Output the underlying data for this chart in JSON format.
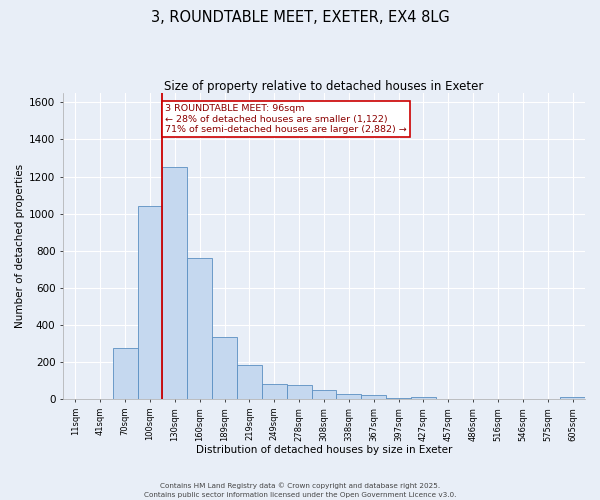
{
  "title1": "3, ROUNDTABLE MEET, EXETER, EX4 8LG",
  "title2": "Size of property relative to detached houses in Exeter",
  "xlabel": "Distribution of detached houses by size in Exeter",
  "ylabel": "Number of detached properties",
  "categories": [
    "11sqm",
    "41sqm",
    "70sqm",
    "100sqm",
    "130sqm",
    "160sqm",
    "189sqm",
    "219sqm",
    "249sqm",
    "278sqm",
    "308sqm",
    "338sqm",
    "367sqm",
    "397sqm",
    "427sqm",
    "457sqm",
    "486sqm",
    "516sqm",
    "546sqm",
    "575sqm",
    "605sqm"
  ],
  "values": [
    0,
    2,
    275,
    1040,
    1250,
    760,
    335,
    185,
    80,
    75,
    50,
    28,
    20,
    5,
    12,
    2,
    1,
    0,
    0,
    1,
    12
  ],
  "bar_color": "#c5d8ef",
  "bar_edge_color": "#5a8fc2",
  "vline_color": "#cc0000",
  "annotation_text": "3 ROUNDTABLE MEET: 96sqm\n← 28% of detached houses are smaller (1,122)\n71% of semi-detached houses are larger (2,882) →",
  "annotation_text_color": "#8b0000",
  "annotation_box_color": "#ffffff",
  "annotation_box_edge": "#cc0000",
  "ylim": [
    0,
    1650
  ],
  "yticks": [
    0,
    200,
    400,
    600,
    800,
    1000,
    1200,
    1400,
    1600
  ],
  "background_color": "#e8eef7",
  "grid_color": "#ffffff",
  "footer1": "Contains HM Land Registry data © Crown copyright and database right 2025.",
  "footer2": "Contains public sector information licensed under the Open Government Licence v3.0."
}
